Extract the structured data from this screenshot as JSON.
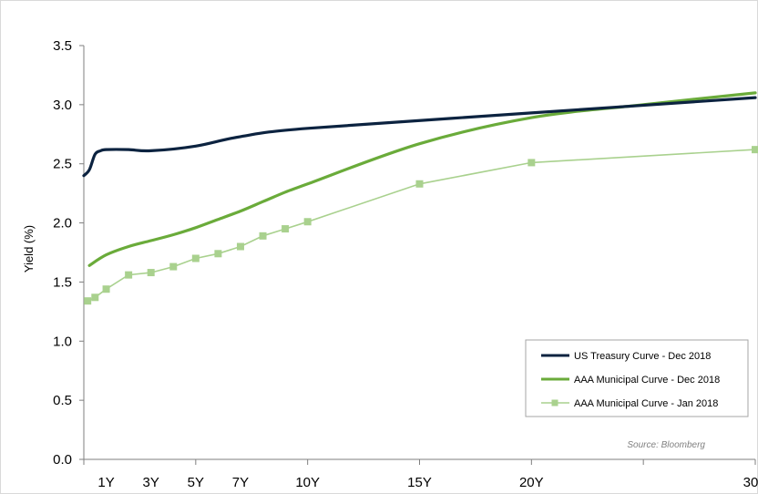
{
  "chart_data": {
    "type": "line",
    "ylabel": "Yield (%)",
    "ylim": [
      0,
      3.5
    ],
    "yticks": [
      "0.0",
      "0.5",
      "1.0",
      "1.5",
      "2.0",
      "2.5",
      "3.0",
      "3.5"
    ],
    "xlim": [
      0,
      30
    ],
    "xticks": [
      {
        "label": "1Y",
        "value": 1
      },
      {
        "label": "3Y",
        "value": 3
      },
      {
        "label": "5Y",
        "value": 5
      },
      {
        "label": "7Y",
        "value": 7
      },
      {
        "label": "10Y",
        "value": 10
      },
      {
        "label": "15Y",
        "value": 15
      },
      {
        "label": "20Y",
        "value": 20
      },
      {
        "label": "30Y",
        "value": 30
      }
    ],
    "legend_position": "bottom-right",
    "source": "Source:  Bloomberg",
    "series": [
      {
        "name": "US Treasury Curve - Dec 2018",
        "color": "#0c2340",
        "marker": "none",
        "x": [
          0.0,
          0.25,
          0.5,
          0.75,
          1.0,
          2.0,
          3.0,
          5.0,
          7.0,
          10.0,
          20.0,
          30.0
        ],
        "y": [
          2.4,
          2.45,
          2.58,
          2.61,
          2.62,
          2.62,
          2.61,
          2.65,
          2.73,
          2.8,
          2.93,
          3.06
        ]
      },
      {
        "name": "AAA Municipal Curve - Dec 2018",
        "color": "#6aab3a",
        "marker": "none",
        "x": [
          0.25,
          1.0,
          2.0,
          3.0,
          4.0,
          5.0,
          6.0,
          7.0,
          8.0,
          9.0,
          10.0,
          15.0,
          20.0,
          25.0,
          30.0
        ],
        "y": [
          1.64,
          1.73,
          1.8,
          1.85,
          1.9,
          1.96,
          2.03,
          2.1,
          2.18,
          2.26,
          2.33,
          2.67,
          2.89,
          3.0,
          3.1
        ]
      },
      {
        "name": "AAA Municipal Curve - Jan 2018",
        "color": "#a9d18e",
        "marker": "square",
        "x": [
          0.17,
          0.5,
          1.0,
          2.0,
          3.0,
          4.0,
          5.0,
          6.0,
          7.0,
          8.0,
          9.0,
          10.0,
          15.0,
          20.0,
          30.0
        ],
        "y": [
          1.34,
          1.37,
          1.44,
          1.56,
          1.58,
          1.63,
          1.7,
          1.74,
          1.8,
          1.89,
          1.95,
          2.01,
          2.33,
          2.51,
          2.62
        ]
      }
    ]
  }
}
